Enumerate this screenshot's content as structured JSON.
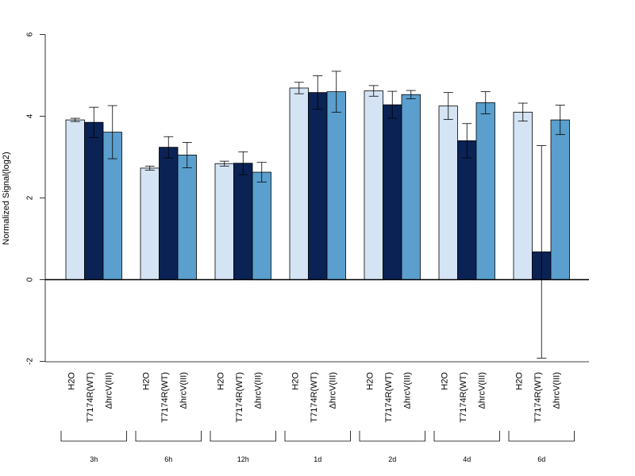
{
  "chart_data": {
    "type": "bar",
    "title": "",
    "xlabel": "",
    "ylabel": "Normalized Signal(log2)",
    "ylim": [
      -2,
      6
    ],
    "yticks": [
      -2,
      0,
      2,
      4,
      6
    ],
    "series_labels": [
      "H2O",
      "T7174R(WT)",
      "ΔhrcV(III)"
    ],
    "colors": [
      "#d4e4f4",
      "#0b2255",
      "#5a9fcd"
    ],
    "groups": [
      {
        "label": "3h",
        "values": [
          3.91,
          3.85,
          3.61
        ],
        "errors": [
          0.04,
          0.37,
          0.65
        ]
      },
      {
        "label": "6h",
        "values": [
          2.73,
          3.24,
          3.05
        ],
        "errors": [
          0.05,
          0.26,
          0.31
        ]
      },
      {
        "label": "12h",
        "values": [
          2.84,
          2.85,
          2.63
        ],
        "errors": [
          0.06,
          0.28,
          0.24
        ]
      },
      {
        "label": "1d",
        "values": [
          4.69,
          4.58,
          4.6
        ],
        "errors": [
          0.14,
          0.41,
          0.5
        ]
      },
      {
        "label": "2d",
        "values": [
          4.62,
          4.28,
          4.53
        ],
        "errors": [
          0.13,
          0.33,
          0.1
        ]
      },
      {
        "label": "4d",
        "values": [
          4.25,
          3.4,
          4.33
        ],
        "errors": [
          0.33,
          0.42,
          0.27
        ]
      },
      {
        "label": "6d",
        "values": [
          4.1,
          0.68,
          3.91
        ],
        "errors": [
          0.22,
          2.6,
          0.36
        ]
      }
    ]
  }
}
